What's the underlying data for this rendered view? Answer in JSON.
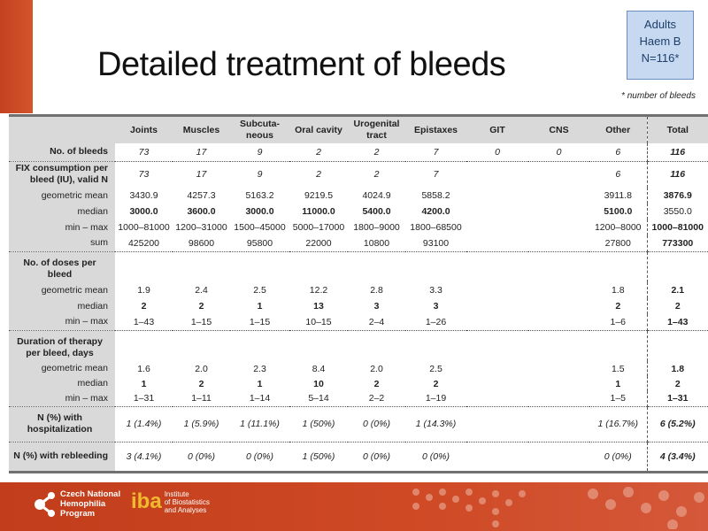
{
  "slide": {
    "title": "Detailed treatment of bleeds",
    "badge": [
      "Adults",
      "Haem B",
      "N=116*"
    ],
    "note": "* number of bleeds"
  },
  "table": {
    "columns": [
      "",
      "Joints",
      "Muscles",
      "Subcuta-neous",
      "Oral cavity",
      "Urogenital tract",
      "Epistaxes",
      "GIT",
      "CNS",
      "Other",
      "Total"
    ],
    "rows": [
      {
        "label": "No. of bleeds",
        "lb": true,
        "style": "i",
        "sep": true,
        "h": 20,
        "values": [
          "73",
          "17",
          "9",
          "2",
          "2",
          "7",
          "0",
          "0",
          "6",
          "116"
        ]
      },
      {
        "label": "FIX consumption per bleed (IU), valid N",
        "lb": true,
        "style": "i",
        "h": 30,
        "values": [
          "73",
          "17",
          "9",
          "2",
          "2",
          "7",
          "",
          "",
          "6",
          "116"
        ]
      },
      {
        "label": "geometric mean",
        "style": "",
        "h": 18,
        "values": [
          "3430.9",
          "4257.3",
          "5163.2",
          "9219.5",
          "4024.9",
          "5858.2",
          "",
          "",
          "3911.8",
          "3876.9"
        ]
      },
      {
        "label": "median",
        "style": "bo",
        "h": 18,
        "values": [
          "3000.0",
          "3600.0",
          "3000.0",
          "11000.0",
          "5400.0",
          "4200.0",
          "",
          "",
          "5100.0",
          "3550.0"
        ]
      },
      {
        "label": "min – max",
        "style": "",
        "h": 18,
        "values": [
          "1000–81000",
          "1200–31000",
          "1500–45000",
          "5000–17000",
          "1800–9000",
          "1800–68500",
          "",
          "",
          "1200–8000",
          "1000–81000"
        ]
      },
      {
        "label": "sum",
        "style": "",
        "sep": true,
        "h": 18,
        "values": [
          "425200",
          "98600",
          "95800",
          "22000",
          "10800",
          "93100",
          "",
          "",
          "27800",
          "773300"
        ]
      },
      {
        "label": "No. of doses per bleed",
        "lb": true,
        "top": true,
        "h": 35,
        "values": [
          "",
          "",
          "",
          "",
          "",
          "",
          "",
          "",
          "",
          ""
        ]
      },
      {
        "label": "geometric mean",
        "style": "",
        "h": 18,
        "values": [
          "1.9",
          "2.4",
          "2.5",
          "12.2",
          "2.8",
          "3.3",
          "",
          "",
          "1.8",
          "2.1"
        ]
      },
      {
        "label": "median",
        "style": "bo",
        "h": 18,
        "values": [
          "2",
          "2",
          "1",
          "13",
          "3",
          "3",
          "",
          "",
          "2",
          "2"
        ]
      },
      {
        "label": "min – max",
        "style": "",
        "sep": true,
        "h": 18,
        "values": [
          "1–43",
          "1–15",
          "1–15",
          "10–15",
          "2–4",
          "1–26",
          "",
          "",
          "1–6",
          "1–43"
        ]
      },
      {
        "label": "Duration of therapy per bleed, days",
        "lb": true,
        "top": true,
        "h": 35,
        "values": [
          "",
          "",
          "",
          "",
          "",
          "",
          "",
          "",
          "",
          ""
        ]
      },
      {
        "label": "geometric mean",
        "style": "",
        "h": 17,
        "values": [
          "1.6",
          "2.0",
          "2.3",
          "8.4",
          "2.0",
          "2.5",
          "",
          "",
          "1.5",
          "1.8"
        ]
      },
      {
        "label": "median",
        "style": "bo",
        "h": 17,
        "values": [
          "1",
          "2",
          "1",
          "10",
          "2",
          "2",
          "",
          "",
          "1",
          "2"
        ]
      },
      {
        "label": "min – max",
        "style": "",
        "sep": true,
        "h": 17,
        "values": [
          "1–31",
          "1–11",
          "1–14",
          "5–14",
          "2–2",
          "1–19",
          "",
          "",
          "1–5",
          "1–31"
        ]
      },
      {
        "label": "N (%) with hospitalization",
        "lb": true,
        "center": true,
        "style": "i",
        "sep": true,
        "h": 40,
        "values": [
          "1 (1.4%)",
          "1 (5.9%)",
          "1 (11.1%)",
          "1 (50%)",
          "0 (0%)",
          "1 (14.3%)",
          "",
          "",
          "1 (16.7%)",
          "6 (5.2%)"
        ]
      },
      {
        "label": "N (%) with rebleeding",
        "lb": true,
        "style": "i",
        "h": 34,
        "values": [
          "3 (4.1%)",
          "0 (0%)",
          "0 (0%)",
          "1 (50%)",
          "0 (0%)",
          "0 (0%)",
          "",
          "",
          "0 (0%)",
          "4 (3.4%)"
        ]
      }
    ]
  },
  "footer": {
    "cnhp_logo": "Czech National Hemophilia Program",
    "iba_logo": "iba",
    "iba_subtitle": [
      "Institute",
      "of Biostatistics",
      "and Analyses"
    ]
  },
  "colors": {
    "accent": "#c9461f",
    "label_bg": "#d9d9d9",
    "badge_bg": "#c6d9f1"
  }
}
